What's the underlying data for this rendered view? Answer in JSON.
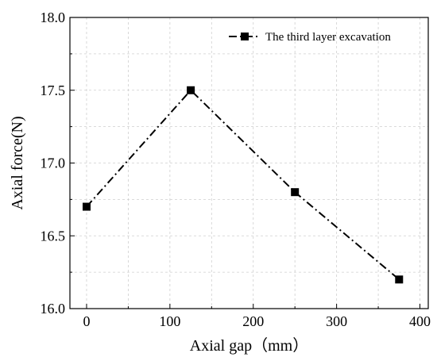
{
  "chart_data": {
    "type": "line",
    "title": "",
    "xlabel": "Axial gap（mm）",
    "ylabel": "Axial force(N)",
    "xlim": [
      -20,
      410
    ],
    "ylim": [
      16.0,
      18.0
    ],
    "x_ticks": [
      0,
      100,
      200,
      300,
      400
    ],
    "y_ticks": [
      16.0,
      16.5,
      17.0,
      17.5,
      18.0
    ],
    "grid": true,
    "legend": "top-right",
    "series": [
      {
        "name": "The third layer excavation",
        "x": [
          0,
          125,
          250,
          375
        ],
        "y": [
          16.7,
          17.5,
          16.8,
          16.2
        ],
        "color": "#000000",
        "line_style": "dash-dot",
        "marker": "square"
      }
    ]
  }
}
